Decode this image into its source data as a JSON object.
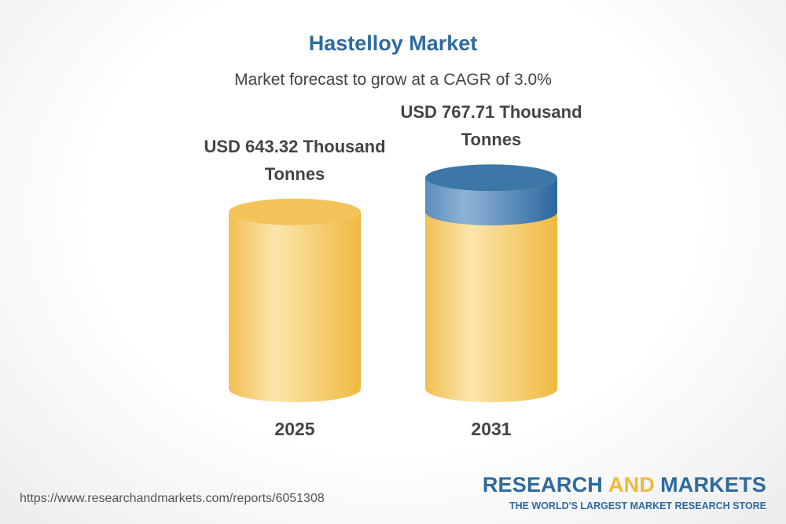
{
  "chart_data": {
    "type": "cylinder",
    "title": "Hastelloy Market",
    "subtitle": "Market forecast to grow at a CAGR of 3.0%",
    "categories": [
      "2025",
      "2031"
    ],
    "values": [
      643.32,
      767.71
    ],
    "value_labels": [
      "USD 643.32 Thousand Tonnes",
      "USD 767.71 Thousand Tonnes"
    ],
    "color": "#f3c259",
    "highlight_color": "#3d77a8"
  },
  "footer": {
    "url": "https://www.researchandmarkets.com/reports/6051308",
    "brand_parts": [
      "RESEARCH",
      "AND",
      "MARKETS"
    ],
    "tagline": "THE WORLD'S LARGEST MARKET RESEARCH STORE"
  }
}
